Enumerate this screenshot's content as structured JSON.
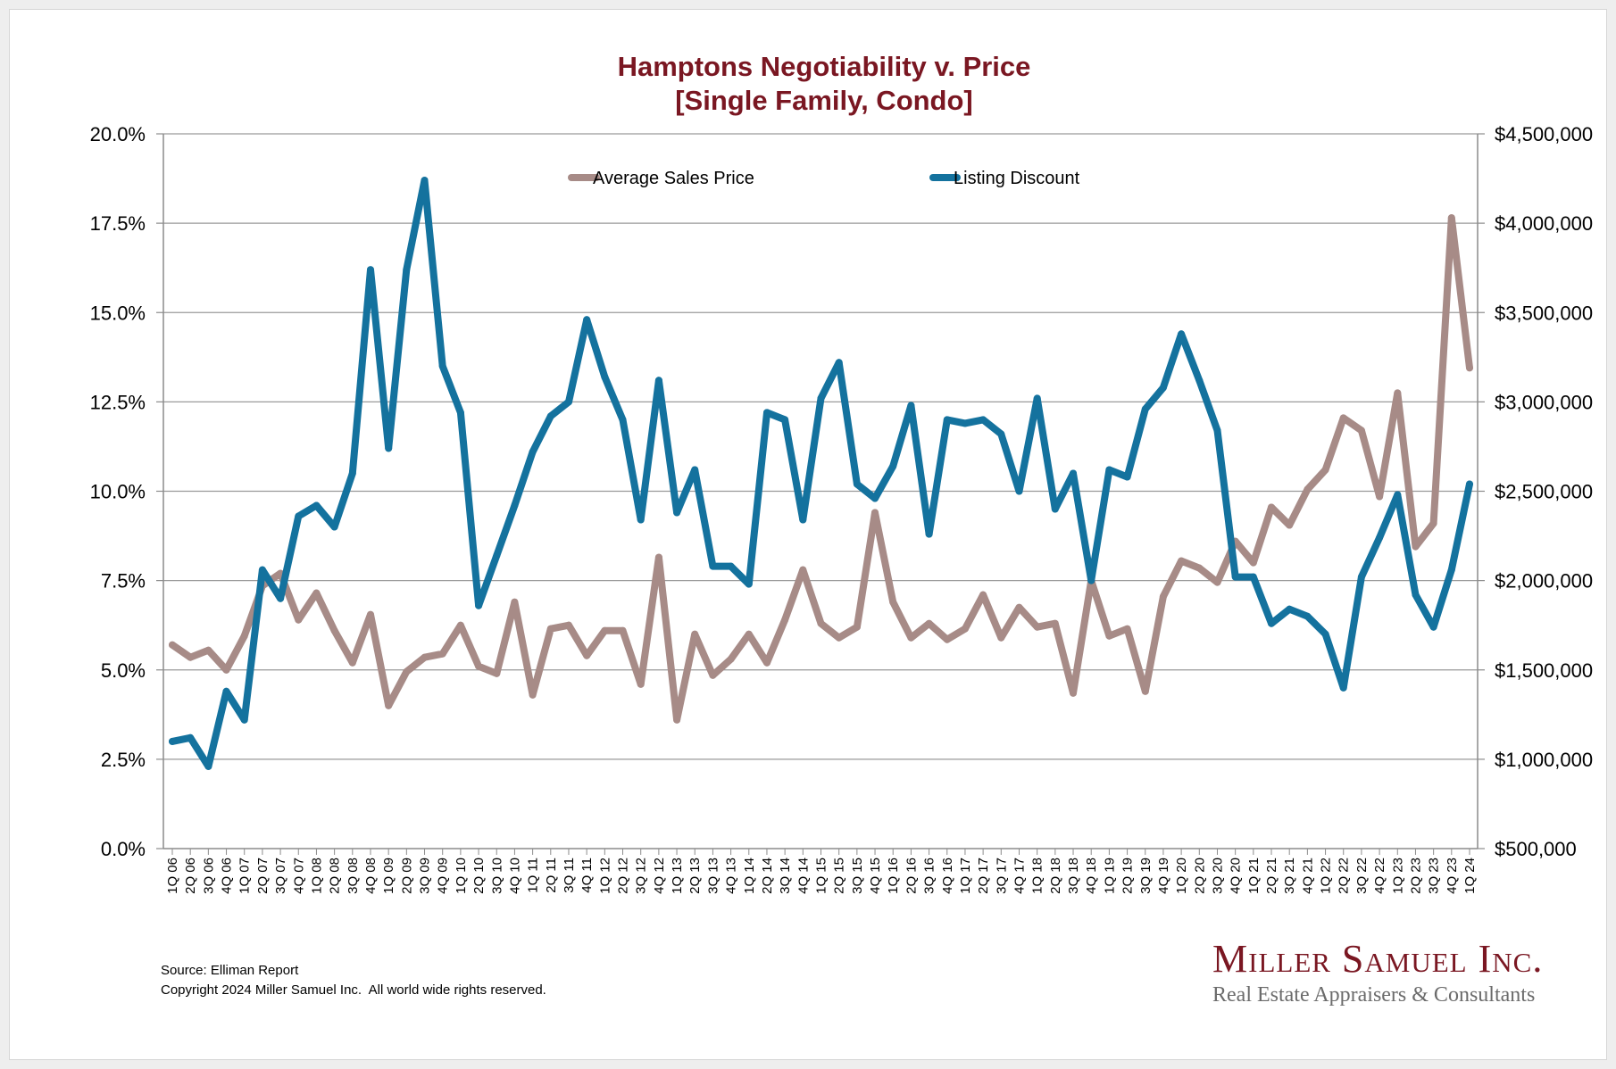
{
  "chart_data": {
    "type": "line",
    "title": "Hamptons Negotiability v. Price",
    "subtitle": "[Single Family, Condo]",
    "categories": [
      "1Q 06",
      "2Q 06",
      "3Q 06",
      "4Q 06",
      "1Q 07",
      "2Q 07",
      "3Q 07",
      "4Q 07",
      "1Q 08",
      "2Q 08",
      "3Q 08",
      "4Q 08",
      "1Q 09",
      "2Q 09",
      "3Q 09",
      "4Q 09",
      "1Q 10",
      "2Q 10",
      "3Q 10",
      "4Q 10",
      "1Q 11",
      "2Q 11",
      "3Q 11",
      "4Q 11",
      "1Q 12",
      "2Q 12",
      "3Q 12",
      "4Q 12",
      "1Q 13",
      "2Q 13",
      "3Q 13",
      "4Q 13",
      "1Q 14",
      "2Q 14",
      "3Q 14",
      "4Q 14",
      "1Q 15",
      "2Q 15",
      "3Q 15",
      "4Q 15",
      "1Q 16",
      "2Q 16",
      "3Q 16",
      "4Q 16",
      "1Q 17",
      "2Q 17",
      "3Q 17",
      "4Q 17",
      "1Q 18",
      "2Q 18",
      "3Q 18",
      "4Q 18",
      "1Q 19",
      "2Q 19",
      "3Q 19",
      "4Q 19",
      "1Q 20",
      "2Q 20",
      "3Q 20",
      "4Q 20",
      "1Q 21",
      "2Q 21",
      "3Q 21",
      "4Q 21",
      "1Q 22",
      "2Q 22",
      "3Q 22",
      "4Q 22",
      "1Q 23",
      "2Q 23",
      "3Q 23",
      "4Q 23",
      "1Q 24"
    ],
    "series": [
      {
        "name": "Average Sales Price",
        "axis": "right",
        "color": "#a78b87",
        "values": [
          1640000,
          1570000,
          1610000,
          1500000,
          1690000,
          1970000,
          2040000,
          1780000,
          1930000,
          1720000,
          1540000,
          1810000,
          1300000,
          1490000,
          1570000,
          1590000,
          1750000,
          1520000,
          1480000,
          1880000,
          1360000,
          1730000,
          1750000,
          1580000,
          1720000,
          1720000,
          1420000,
          2130000,
          1220000,
          1700000,
          1470000,
          1560000,
          1700000,
          1540000,
          1780000,
          2060000,
          1760000,
          1680000,
          1740000,
          2380000,
          1880000,
          1680000,
          1760000,
          1670000,
          1730000,
          1920000,
          1680000,
          1850000,
          1740000,
          1760000,
          1370000,
          2000000,
          1690000,
          1730000,
          1380000,
          1910000,
          2110000,
          2070000,
          1990000,
          2220000,
          2100000,
          2410000,
          2310000,
          2510000,
          2620000,
          2910000,
          2840000,
          2470000,
          3050000,
          2190000,
          2320000,
          4030000,
          3190000
        ]
      },
      {
        "name": "Listing Discount",
        "axis": "left",
        "color": "#14729e",
        "values": [
          3.0,
          3.1,
          2.3,
          4.4,
          3.6,
          7.8,
          7.0,
          9.3,
          9.6,
          9.0,
          10.5,
          16.2,
          11.2,
          16.2,
          18.7,
          13.5,
          12.2,
          6.8,
          8.2,
          9.6,
          11.1,
          12.1,
          12.5,
          14.8,
          13.2,
          12.0,
          9.2,
          13.1,
          9.4,
          10.6,
          7.9,
          7.9,
          7.4,
          12.2,
          12.0,
          9.2,
          12.6,
          13.6,
          10.2,
          9.8,
          10.7,
          12.4,
          8.8,
          12.0,
          11.9,
          12.0,
          11.6,
          10.0,
          12.6,
          9.5,
          10.5,
          7.5,
          10.6,
          10.4,
          12.3,
          12.9,
          14.4,
          13.1,
          11.7,
          7.6,
          7.6,
          6.3,
          6.7,
          6.5,
          6.0,
          4.5,
          7.6,
          8.7,
          9.9,
          7.1,
          6.2,
          7.8,
          10.2
        ]
      }
    ],
    "y_left": {
      "min": 0,
      "max": 20,
      "step": 2.5,
      "ticks": [
        "0.0%",
        "2.5%",
        "5.0%",
        "7.5%",
        "10.0%",
        "12.5%",
        "15.0%",
        "17.5%",
        "20.0%"
      ]
    },
    "y_right": {
      "min": 500000,
      "max": 4500000,
      "step": 500000,
      "ticks": [
        "$500,000",
        "$1,000,000",
        "$1,500,000",
        "$2,000,000",
        "$2,500,000",
        "$3,000,000",
        "$3,500,000",
        "$4,000,000",
        "$4,500,000"
      ]
    },
    "grid": true,
    "legend_position": "top-center"
  },
  "footer": {
    "source": "Source: Elliman Report",
    "copyright": "Copyright 2024 Miller Samuel Inc.  All world wide rights reserved."
  },
  "logo": {
    "name": "Miller Samuel Inc.",
    "tagline": "Real Estate Appraisers & Consultants"
  }
}
